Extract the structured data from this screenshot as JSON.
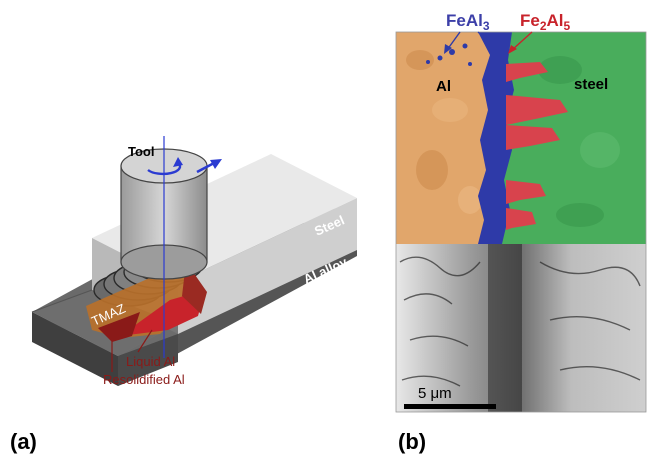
{
  "panel_a": {
    "label": "(a)",
    "tool_label": "Tool",
    "layer_top": "Steel",
    "layer_bottom": "Al alloy",
    "zone_tmaz": "TMAZ",
    "zone_liquid": "Liquid Al",
    "zone_resolidified": "Resolidified Al"
  },
  "panel_b": {
    "label": "(b)",
    "phase1_base": "FeAl",
    "phase1_sub": "3",
    "phase2_a": "Fe",
    "phase2_a_sub": "2",
    "phase2_b": "Al",
    "phase2_b_sub": "5",
    "region_al": "Al",
    "region_steel": "steel",
    "scale_bar": "5 μm"
  },
  "colors": {
    "al_region": "#e1a66b",
    "steel_region": "#49ad5c",
    "feal3": "#2e3aa8",
    "fe2al5": "#d8434d",
    "tool": "#bdbdbd",
    "steel_top": "#e7e7e7",
    "al_alloy": "#6a6a6a",
    "tmaz": "#b8702a",
    "liquid_al": "#c8232b",
    "phase1_text": "#3c3fa8",
    "phase2_text": "#c8232b"
  }
}
